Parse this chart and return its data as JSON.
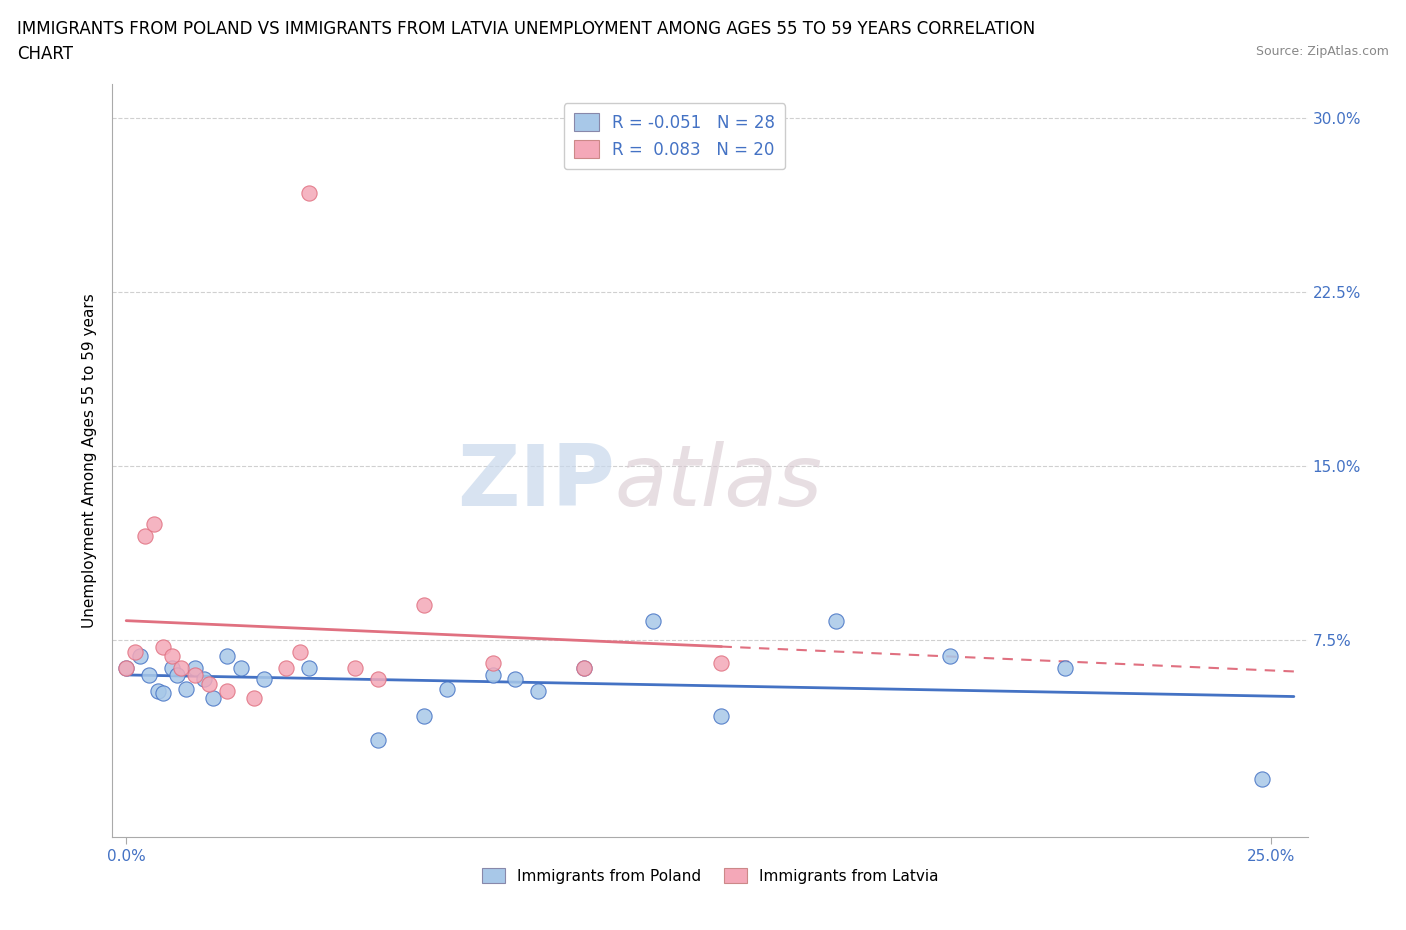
{
  "title_line1": "IMMIGRANTS FROM POLAND VS IMMIGRANTS FROM LATVIA UNEMPLOYMENT AMONG AGES 55 TO 59 YEARS CORRELATION",
  "title_line2": "CHART",
  "source": "Source: ZipAtlas.com",
  "xlabel_poland": "Immigrants from Poland",
  "xlabel_latvia": "Immigrants from Latvia",
  "ylabel": "Unemployment Among Ages 55 to 59 years",
  "xlim": [
    -0.003,
    0.258
  ],
  "ylim": [
    -0.01,
    0.315
  ],
  "xticks": [
    0.0,
    0.25
  ],
  "yticks": [
    0.075,
    0.15,
    0.225,
    0.3
  ],
  "ytick_labels": [
    "7.5%",
    "15.0%",
    "22.5%",
    "30.0%"
  ],
  "xtick_labels": [
    "0.0%",
    "25.0%"
  ],
  "poland_color": "#a8c8e8",
  "latvia_color": "#f4a8b8",
  "poland_R": -0.051,
  "poland_N": 28,
  "latvia_R": 0.083,
  "latvia_N": 20,
  "poland_scatter_x": [
    0.0,
    0.003,
    0.005,
    0.007,
    0.008,
    0.01,
    0.011,
    0.013,
    0.015,
    0.017,
    0.019,
    0.022,
    0.025,
    0.03,
    0.04,
    0.055,
    0.065,
    0.07,
    0.08,
    0.085,
    0.09,
    0.1,
    0.115,
    0.13,
    0.155,
    0.18,
    0.205,
    0.248
  ],
  "poland_scatter_y": [
    0.063,
    0.068,
    0.06,
    0.053,
    0.052,
    0.063,
    0.06,
    0.054,
    0.063,
    0.058,
    0.05,
    0.068,
    0.063,
    0.058,
    0.063,
    0.032,
    0.042,
    0.054,
    0.06,
    0.058,
    0.053,
    0.063,
    0.083,
    0.042,
    0.083,
    0.068,
    0.063,
    0.015
  ],
  "latvia_scatter_x": [
    0.0,
    0.002,
    0.004,
    0.006,
    0.008,
    0.01,
    0.012,
    0.015,
    0.018,
    0.022,
    0.028,
    0.035,
    0.038,
    0.04,
    0.05,
    0.055,
    0.065,
    0.08,
    0.1,
    0.13
  ],
  "latvia_scatter_y": [
    0.063,
    0.07,
    0.12,
    0.125,
    0.072,
    0.068,
    0.063,
    0.06,
    0.056,
    0.053,
    0.05,
    0.063,
    0.07,
    0.268,
    0.063,
    0.058,
    0.09,
    0.065,
    0.063,
    0.065
  ],
  "watermark_zip": "ZIP",
  "watermark_atlas": "atlas",
  "background_color": "#ffffff",
  "grid_color": "#d0d0d0",
  "axis_color": "#aaaaaa",
  "blue_color": "#4472c4",
  "pink_line_color": "#e07080",
  "title_fontsize": 12,
  "label_fontsize": 11,
  "tick_fontsize": 11,
  "legend_fontsize": 12
}
